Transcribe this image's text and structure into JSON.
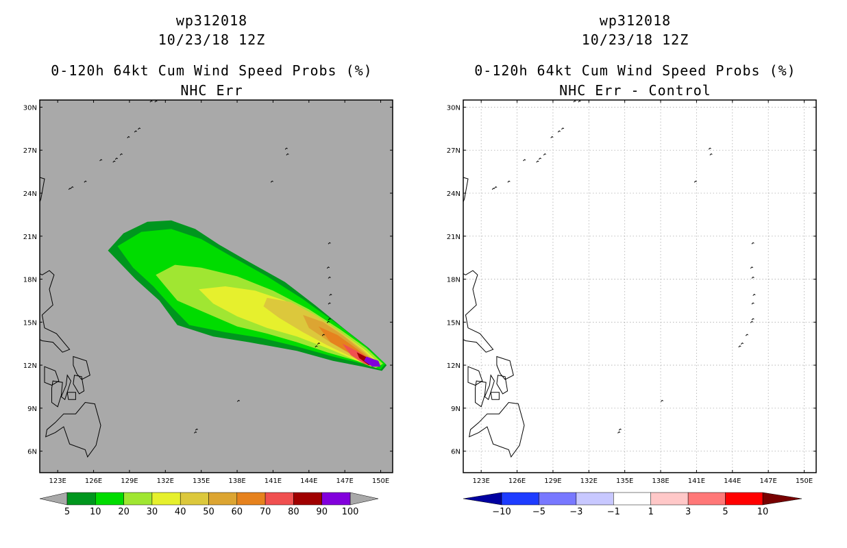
{
  "panels": [
    {
      "id": "left",
      "storm_id": "wp312018",
      "datetime": "10/23/18 12Z",
      "product": "0-120h 64kt Cum Wind Speed Probs (%)",
      "subtitle": "NHC Err",
      "background_color": "#a9a9a9",
      "colorbar": {
        "colors": [
          "#00961e",
          "#00dc00",
          "#a0e632",
          "#e6f02d",
          "#dcc83c",
          "#dca532",
          "#e6821e",
          "#f05050",
          "#a00000",
          "#8200dc"
        ],
        "labels": [
          "5",
          "10",
          "20",
          "30",
          "40",
          "50",
          "60",
          "70",
          "80",
          "90",
          "100"
        ]
      }
    },
    {
      "id": "right",
      "storm_id": "wp312018",
      "datetime": "10/23/18 12Z",
      "product": "0-120h 64kt Cum Wind Speed Probs (%)",
      "subtitle": "NHC Err - Control",
      "background_color": "#ffffff",
      "colorbar": {
        "colors": [
          "#1e3cff",
          "#7878ff",
          "#c8c8ff",
          "#ffffff",
          "#ffc8c8",
          "#ff7878",
          "#ff0000"
        ],
        "end_colors": [
          "#0000a0",
          "#780000"
        ],
        "labels": [
          "-10",
          "-5",
          "-3",
          "-1",
          "1",
          "3",
          "5",
          "10"
        ]
      }
    }
  ],
  "map": {
    "lon_ticks": [
      "123E",
      "126E",
      "129E",
      "132E",
      "135E",
      "138E",
      "141E",
      "144E",
      "147E",
      "150E"
    ],
    "lat_ticks": [
      "30N",
      "27N",
      "24N",
      "21N",
      "18N",
      "15N",
      "12N",
      "9N",
      "6N"
    ]
  },
  "chart_data": {
    "type": "heatmap",
    "title": "0-120h 64kt Cum Wind Speed Probs (%)",
    "storm": "wp312018",
    "valid": "10/23/18 12Z",
    "lon_range": [
      121.5,
      151
    ],
    "lat_range": [
      4.5,
      30.5
    ],
    "left_field": "NHC Err",
    "right_field": "NHC Err - Control",
    "contour_levels": [
      5,
      10,
      20,
      30,
      40,
      50,
      60,
      70,
      80,
      90,
      100
    ],
    "difference_levels": [
      -10,
      -5,
      -3,
      -1,
      1,
      3,
      5,
      10
    ],
    "difference_field_max_abs": 0
  }
}
